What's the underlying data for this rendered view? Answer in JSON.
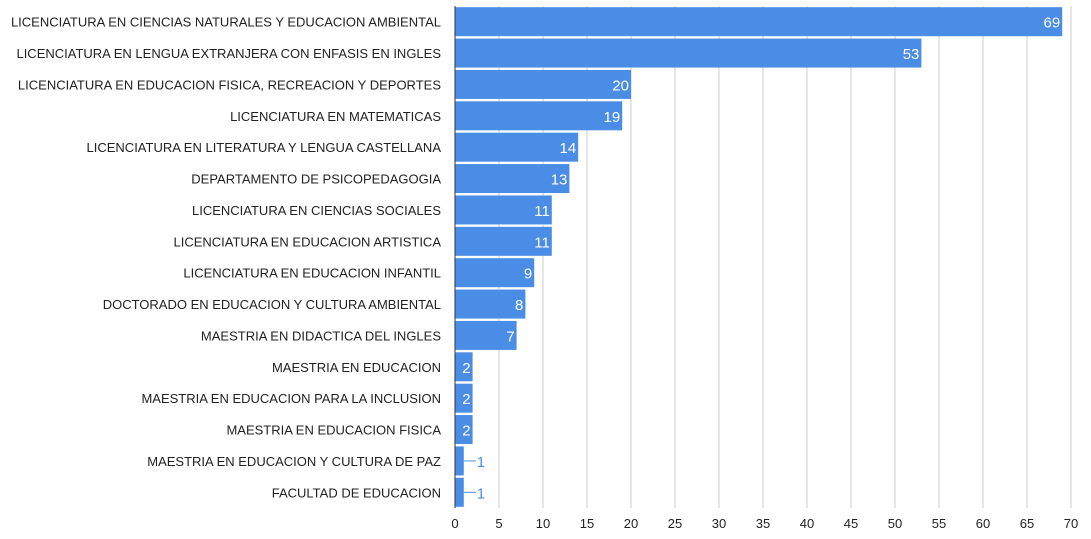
{
  "chart_data": {
    "type": "bar",
    "orientation": "horizontal",
    "categories": [
      "LICENCIATURA EN CIENCIAS NATURALES Y EDUCACION AMBIENTAL",
      "LICENCIATURA EN LENGUA EXTRANJERA CON ENFASIS EN INGLES",
      "LICENCIATURA EN EDUCACION FISICA, RECREACION Y DEPORTES",
      "LICENCIATURA EN MATEMATICAS",
      "LICENCIATURA EN LITERATURA Y LENGUA CASTELLANA",
      "DEPARTAMENTO DE PSICOPEDAGOGIA",
      "LICENCIATURA EN CIENCIAS SOCIALES",
      "LICENCIATURA EN EDUCACION ARTISTICA",
      "LICENCIATURA EN EDUCACION INFANTIL",
      "DOCTORADO EN EDUCACION Y CULTURA AMBIENTAL",
      "MAESTRIA EN DIDACTICA DEL INGLES",
      "MAESTRIA EN EDUCACION",
      "MAESTRIA EN EDUCACION PARA LA INCLUSION",
      "MAESTRIA EN EDUCACION FISICA",
      "MAESTRIA EN EDUCACION Y CULTURA DE PAZ",
      "FACULTAD DE EDUCACION"
    ],
    "values": [
      69,
      53,
      20,
      19,
      14,
      13,
      11,
      11,
      9,
      8,
      7,
      2,
      2,
      2,
      1,
      1
    ],
    "xlim": [
      0,
      70
    ],
    "xticks": [
      0,
      5,
      10,
      15,
      20,
      25,
      30,
      35,
      40,
      45,
      50,
      55,
      60,
      65,
      70
    ],
    "grid": true,
    "bar_color": "#4a8de6",
    "gridline_color": "#cccccc",
    "axis_color": "#333333",
    "data_labels": true
  }
}
